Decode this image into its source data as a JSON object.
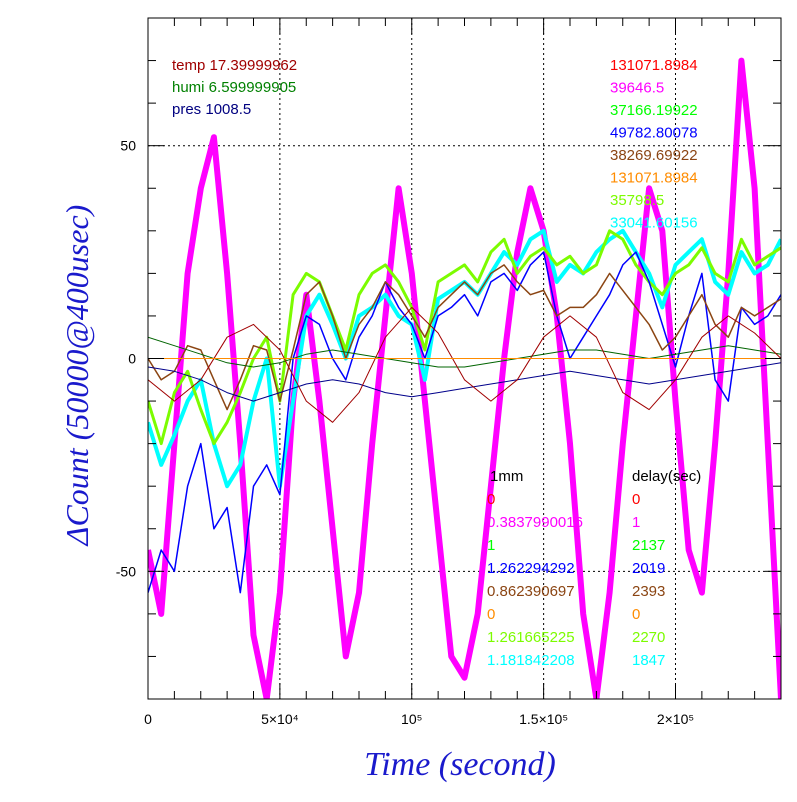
{
  "chart_data": {
    "type": "line",
    "xlabel": "Time (second)",
    "ylabel": "ΔCount (50000@400usec)",
    "xlim": [
      0,
      240000
    ],
    "ylim": [
      -80,
      80
    ],
    "x_ticks": [
      {
        "value": 0,
        "label": "0"
      },
      {
        "value": 50000,
        "label": "5×10⁴"
      },
      {
        "value": 100000,
        "label": "10⁵"
      },
      {
        "value": 150000,
        "label": "1.5×10⁵"
      },
      {
        "value": 200000,
        "label": "2×10⁵"
      }
    ],
    "y_ticks": [
      {
        "value": -50,
        "label": "-50"
      },
      {
        "value": 0,
        "label": "0"
      },
      {
        "value": 50,
        "label": "50"
      }
    ],
    "grid": true,
    "env_labels": [
      {
        "text": "temp 17.39999962",
        "color": "#a00000"
      },
      {
        "text": "humi 6.599999905",
        "color": "#008000"
      },
      {
        "text": "pres 1008.5",
        "color": "#000080"
      }
    ],
    "top_right_values": [
      {
        "text": "131071.8984",
        "color": "#ff0000"
      },
      {
        "text": "39646.5",
        "color": "#ff00ff"
      },
      {
        "text": "37166.19922",
        "color": "#00ff00"
      },
      {
        "text": "49782.80078",
        "color": "#0000ff"
      },
      {
        "text": "38269.69922",
        "color": "#8b4513"
      },
      {
        "text": "131071.8984",
        "color": "#ff8c00"
      },
      {
        "text": "35798.5",
        "color": "#7cfc00"
      },
      {
        "text": "33041.60156",
        "color": "#00ffff"
      }
    ],
    "table_headers": {
      "left": "1mm",
      "right": "delay(sec)"
    },
    "table_rows": [
      {
        "mm": "0",
        "delay": "0",
        "color": "#ff0000"
      },
      {
        "mm": "0.3837990016",
        "delay": "1",
        "color": "#ff00ff"
      },
      {
        "mm": "1",
        "delay": "2137",
        "color": "#00ff00"
      },
      {
        "mm": "1.262294292",
        "delay": "2019",
        "color": "#0000ff"
      },
      {
        "mm": "0.862390697",
        "delay": "2393",
        "color": "#8b4513"
      },
      {
        "mm": "0",
        "delay": "0",
        "color": "#ff8c00"
      },
      {
        "mm": "1.261665225",
        "delay": "2270",
        "color": "#7cfc00"
      },
      {
        "mm": "1.181842208",
        "delay": "1847",
        "color": "#00ffff"
      }
    ],
    "series": [
      {
        "color": "#ff00ff",
        "line_width": 6,
        "x": [
          0,
          5000,
          10000,
          15000,
          20000,
          25000,
          30000,
          35000,
          40000,
          45000,
          50000,
          55000,
          60000,
          65000,
          70000,
          75000,
          80000,
          85000,
          90000,
          95000,
          100000,
          105000,
          110000,
          115000,
          120000,
          125000,
          130000,
          135000,
          140000,
          145000,
          150000,
          155000,
          160000,
          165000,
          170000,
          175000,
          180000,
          185000,
          190000,
          195000,
          200000,
          205000,
          210000,
          215000,
          220000,
          225000,
          230000,
          235000,
          240000
        ],
        "y": [
          -45,
          -60,
          -20,
          20,
          40,
          52,
          20,
          -20,
          -65,
          -80,
          -55,
          -10,
          15,
          -10,
          -40,
          -70,
          -55,
          -20,
          10,
          40,
          20,
          -10,
          -40,
          -70,
          -75,
          -60,
          -30,
          0,
          25,
          40,
          30,
          10,
          -20,
          -60,
          -80,
          -55,
          -20,
          10,
          40,
          30,
          -10,
          -45,
          -55,
          -20,
          20,
          70,
          40,
          -20,
          -80
        ]
      },
      {
        "color": "#00ffff",
        "line_width": 4,
        "x": [
          0,
          5000,
          10000,
          15000,
          20000,
          25000,
          30000,
          35000,
          40000,
          45000,
          50000,
          55000,
          60000,
          65000,
          70000,
          75000,
          80000,
          85000,
          90000,
          95000,
          100000,
          105000,
          110000,
          115000,
          120000,
          125000,
          130000,
          135000,
          140000,
          145000,
          150000,
          155000,
          160000,
          165000,
          170000,
          175000,
          180000,
          185000,
          190000,
          195000,
          200000,
          205000,
          210000,
          215000,
          220000,
          225000,
          230000,
          235000,
          240000
        ],
        "y": [
          -15,
          -25,
          -18,
          -10,
          -5,
          -20,
          -30,
          -25,
          -10,
          0,
          -30,
          -10,
          10,
          15,
          8,
          0,
          10,
          12,
          15,
          10,
          8,
          -5,
          14,
          16,
          18,
          15,
          20,
          25,
          22,
          28,
          30,
          18,
          22,
          20,
          25,
          28,
          30,
          25,
          20,
          12,
          22,
          25,
          28,
          18,
          15,
          25,
          20,
          22,
          28
        ]
      },
      {
        "color": "#7cfc00",
        "line_width": 3,
        "x": [
          0,
          5000,
          10000,
          15000,
          20000,
          25000,
          30000,
          35000,
          40000,
          45000,
          50000,
          55000,
          60000,
          65000,
          70000,
          75000,
          80000,
          85000,
          90000,
          95000,
          100000,
          105000,
          110000,
          115000,
          120000,
          125000,
          130000,
          135000,
          140000,
          145000,
          150000,
          155000,
          160000,
          165000,
          170000,
          175000,
          180000,
          185000,
          190000,
          195000,
          200000,
          205000,
          210000,
          215000,
          220000,
          225000,
          230000,
          235000,
          240000
        ],
        "y": [
          -10,
          -20,
          -8,
          -3,
          -12,
          -20,
          -15,
          -8,
          0,
          5,
          -10,
          15,
          20,
          18,
          10,
          2,
          15,
          20,
          22,
          18,
          12,
          2,
          18,
          20,
          22,
          18,
          25,
          28,
          20,
          24,
          26,
          22,
          24,
          20,
          22,
          30,
          28,
          22,
          18,
          15,
          20,
          22,
          26,
          20,
          18,
          28,
          22,
          24,
          26
        ]
      },
      {
        "color": "#0000ff",
        "line_width": 1.5,
        "x": [
          0,
          5000,
          10000,
          15000,
          20000,
          25000,
          30000,
          35000,
          40000,
          45000,
          50000,
          55000,
          60000,
          65000,
          70000,
          75000,
          80000,
          85000,
          90000,
          95000,
          100000,
          105000,
          110000,
          115000,
          120000,
          125000,
          130000,
          135000,
          140000,
          145000,
          150000,
          155000,
          160000,
          165000,
          170000,
          175000,
          180000,
          185000,
          190000,
          195000,
          200000,
          205000,
          210000,
          215000,
          220000,
          225000,
          230000,
          235000,
          240000
        ],
        "y": [
          -55,
          -45,
          -50,
          -30,
          -20,
          -40,
          -35,
          -55,
          -30,
          -25,
          -32,
          0,
          10,
          8,
          0,
          -5,
          5,
          10,
          18,
          12,
          8,
          0,
          10,
          12,
          15,
          10,
          18,
          20,
          16,
          22,
          25,
          10,
          0,
          5,
          10,
          15,
          22,
          25,
          18,
          8,
          -2,
          10,
          20,
          -5,
          -10,
          12,
          8,
          10,
          15
        ]
      },
      {
        "color": "#8b4513",
        "line_width": 1.5,
        "x": [
          0,
          5000,
          10000,
          15000,
          20000,
          25000,
          30000,
          35000,
          40000,
          45000,
          50000,
          55000,
          60000,
          65000,
          70000,
          75000,
          80000,
          85000,
          90000,
          95000,
          100000,
          105000,
          110000,
          115000,
          120000,
          125000,
          130000,
          135000,
          140000,
          145000,
          150000,
          155000,
          160000,
          165000,
          170000,
          175000,
          180000,
          185000,
          190000,
          195000,
          200000,
          205000,
          210000,
          215000,
          220000,
          225000,
          230000,
          235000,
          240000
        ],
        "y": [
          0,
          -5,
          -3,
          3,
          2,
          -5,
          -12,
          -5,
          3,
          2,
          -10,
          2,
          15,
          18,
          10,
          0,
          8,
          12,
          18,
          15,
          10,
          5,
          12,
          15,
          18,
          15,
          20,
          22,
          18,
          15,
          16,
          10,
          12,
          12,
          15,
          20,
          16,
          12,
          8,
          2,
          5,
          10,
          15,
          8,
          5,
          12,
          10,
          12,
          14
        ]
      },
      {
        "color": "#006400",
        "line_width": 1,
        "x": [
          0,
          10000,
          20000,
          30000,
          40000,
          50000,
          60000,
          70000,
          80000,
          90000,
          100000,
          110000,
          120000,
          130000,
          140000,
          150000,
          160000,
          170000,
          180000,
          190000,
          200000,
          210000,
          220000,
          230000,
          240000
        ],
        "y": [
          5,
          3,
          1,
          -1,
          -2,
          -1,
          1,
          2,
          1,
          0,
          -1,
          -2,
          -2,
          -1,
          0,
          1,
          2,
          2,
          1,
          0,
          1,
          2,
          3,
          2,
          1
        ]
      },
      {
        "color": "#00008b",
        "line_width": 1,
        "x": [
          0,
          10000,
          20000,
          30000,
          40000,
          50000,
          60000,
          70000,
          80000,
          90000,
          100000,
          110000,
          120000,
          130000,
          140000,
          150000,
          160000,
          170000,
          180000,
          190000,
          200000,
          210000,
          220000,
          230000,
          240000
        ],
        "y": [
          -2,
          -3,
          -5,
          -8,
          -10,
          -8,
          -6,
          -5,
          -6,
          -8,
          -9,
          -8,
          -7,
          -6,
          -5,
          -4,
          -3,
          -4,
          -5,
          -6,
          -5,
          -4,
          -3,
          -2,
          -1
        ]
      },
      {
        "color": "#a00000",
        "line_width": 1,
        "x": [
          0,
          10000,
          20000,
          30000,
          40000,
          50000,
          60000,
          70000,
          80000,
          90000,
          100000,
          110000,
          120000,
          130000,
          140000,
          150000,
          160000,
          170000,
          180000,
          190000,
          200000,
          210000,
          220000,
          230000,
          240000
        ],
        "y": [
          -5,
          -10,
          -5,
          5,
          8,
          2,
          -10,
          -15,
          -8,
          5,
          12,
          6,
          -5,
          -10,
          -5,
          5,
          10,
          5,
          -8,
          -12,
          -5,
          5,
          10,
          6,
          0
        ]
      },
      {
        "color": "#ff8c00",
        "line_width": 1,
        "x": [
          0,
          240000
        ],
        "y": [
          0,
          0
        ]
      }
    ]
  }
}
